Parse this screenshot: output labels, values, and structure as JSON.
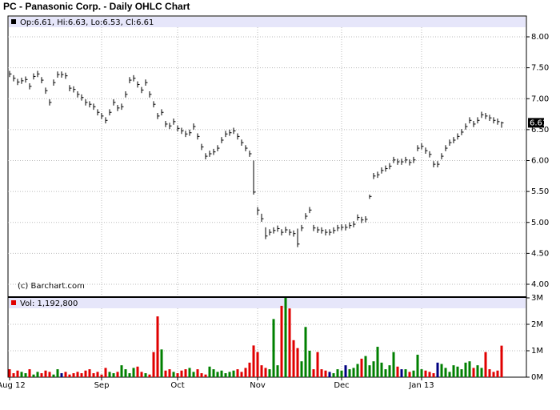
{
  "chart_data": {
    "type": "ohlc",
    "title": "PC - Panasonic Corp. - Daily OHLC Chart",
    "price_header": "Op:6.61, Hi:6.63, Lo:6.53, Cl:6.61",
    "volume_header": "Vol: 1,192,800",
    "credit": "(c) Barchart.com",
    "categories": [
      "Aug 12",
      null,
      null,
      null,
      null,
      null,
      null,
      null,
      null,
      null,
      null,
      null,
      null,
      null,
      null,
      null,
      null,
      null,
      null,
      null,
      null,
      null,
      null,
      "Sep",
      null,
      null,
      null,
      null,
      null,
      null,
      null,
      null,
      null,
      null,
      null,
      null,
      null,
      null,
      null,
      null,
      null,
      null,
      "Oct",
      null,
      null,
      null,
      null,
      null,
      null,
      null,
      null,
      null,
      null,
      null,
      null,
      null,
      null,
      null,
      null,
      null,
      null,
      null,
      "Nov",
      null,
      null,
      null,
      null,
      null,
      null,
      null,
      null,
      null,
      null,
      null,
      null,
      null,
      null,
      null,
      null,
      null,
      null,
      null,
      null,
      "Dec",
      null,
      null,
      null,
      null,
      null,
      null,
      null,
      null,
      null,
      null,
      null,
      null,
      null,
      null,
      null,
      null,
      null,
      null,
      null,
      "Jan 13",
      null,
      null,
      null,
      null,
      null,
      null,
      null,
      null,
      null,
      null,
      null,
      null,
      null,
      null,
      null,
      null,
      null,
      null,
      null,
      null
    ],
    "high": [
      7.45,
      7.38,
      7.32,
      7.34,
      7.36,
      7.25,
      7.41,
      7.45,
      7.35,
      7.18,
      6.99,
      7.31,
      7.44,
      7.44,
      7.42,
      7.22,
      7.2,
      7.12,
      7.07,
      6.99,
      6.96,
      6.92,
      6.83,
      6.77,
      6.7,
      6.83,
      6.99,
      6.9,
      6.92,
      7.12,
      7.35,
      7.38,
      7.28,
      7.19,
      7.31,
      7.12,
      6.96,
      6.77,
      6.83,
      6.64,
      6.61,
      6.68,
      6.57,
      6.53,
      6.48,
      6.5,
      6.6,
      6.44,
      6.27,
      6.12,
      6.16,
      6.19,
      6.25,
      6.38,
      6.48,
      6.5,
      6.53,
      6.44,
      6.34,
      6.25,
      6.16,
      6.0,
      5.25,
      5.14,
      4.92,
      4.89,
      4.92,
      4.95,
      4.89,
      4.93,
      4.89,
      4.87,
      4.9,
      4.96,
      5.15,
      5.25,
      4.96,
      4.93,
      4.92,
      4.89,
      4.89,
      4.92,
      4.96,
      4.97,
      4.97,
      5.0,
      5.02,
      5.13,
      5.09,
      5.1,
      5.45,
      5.8,
      5.82,
      5.89,
      5.92,
      5.96,
      6.06,
      6.03,
      6.03,
      6.06,
      6.02,
      6.06,
      6.25,
      6.28,
      6.21,
      6.15,
      5.99,
      5.99,
      6.12,
      6.25,
      6.34,
      6.38,
      6.44,
      6.51,
      6.6,
      6.7,
      6.64,
      6.7,
      6.79,
      6.77,
      6.74,
      6.7,
      6.68,
      6.63
    ],
    "low": [
      7.35,
      7.28,
      7.22,
      7.24,
      7.26,
      7.15,
      7.31,
      7.35,
      7.25,
      7.08,
      6.89,
      7.21,
      7.34,
      7.34,
      7.32,
      7.12,
      7.1,
      7.02,
      6.97,
      6.89,
      6.86,
      6.82,
      6.73,
      6.67,
      6.6,
      6.73,
      6.89,
      6.8,
      6.82,
      7.02,
      7.25,
      7.28,
      7.18,
      7.09,
      7.21,
      7.02,
      6.86,
      6.67,
      6.73,
      6.54,
      6.51,
      6.58,
      6.47,
      6.43,
      6.38,
      6.4,
      6.5,
      6.34,
      6.17,
      6.02,
      6.06,
      6.09,
      6.15,
      6.28,
      6.38,
      6.4,
      6.43,
      6.34,
      6.24,
      6.15,
      6.06,
      5.45,
      5.12,
      5.01,
      4.73,
      4.79,
      4.82,
      4.85,
      4.79,
      4.83,
      4.79,
      4.77,
      4.6,
      4.86,
      5.05,
      5.15,
      4.86,
      4.83,
      4.82,
      4.79,
      4.79,
      4.82,
      4.86,
      4.87,
      4.87,
      4.9,
      4.92,
      5.03,
      4.99,
      5.0,
      5.38,
      5.7,
      5.72,
      5.79,
      5.82,
      5.86,
      5.96,
      5.93,
      5.93,
      5.96,
      5.92,
      5.96,
      6.15,
      6.18,
      6.11,
      6.05,
      5.89,
      5.89,
      6.02,
      6.15,
      6.24,
      6.28,
      6.34,
      6.41,
      6.5,
      6.6,
      6.54,
      6.6,
      6.69,
      6.67,
      6.64,
      6.6,
      6.58,
      6.53
    ],
    "close": [
      7.4,
      7.33,
      7.27,
      7.29,
      7.31,
      7.2,
      7.36,
      7.4,
      7.3,
      7.13,
      6.94,
      7.26,
      7.39,
      7.39,
      7.37,
      7.17,
      7.15,
      7.07,
      7.02,
      6.94,
      6.91,
      6.87,
      6.78,
      6.72,
      6.65,
      6.78,
      6.94,
      6.85,
      6.87,
      7.07,
      7.3,
      7.33,
      7.23,
      7.14,
      7.26,
      7.07,
      6.91,
      6.72,
      6.78,
      6.59,
      6.56,
      6.63,
      6.52,
      6.48,
      6.43,
      6.45,
      6.55,
      6.39,
      6.22,
      6.07,
      6.11,
      6.14,
      6.2,
      6.33,
      6.43,
      6.45,
      6.48,
      6.39,
      6.29,
      6.2,
      6.11,
      5.49,
      5.2,
      5.06,
      4.78,
      4.84,
      4.87,
      4.9,
      4.84,
      4.88,
      4.84,
      4.82,
      4.65,
      4.91,
      5.1,
      5.2,
      4.91,
      4.88,
      4.87,
      4.84,
      4.84,
      4.87,
      4.91,
      4.92,
      4.92,
      4.95,
      4.97,
      5.08,
      5.04,
      5.05,
      5.42,
      5.75,
      5.77,
      5.84,
      5.87,
      5.91,
      6.01,
      5.98,
      5.98,
      6.01,
      5.97,
      6.01,
      6.2,
      6.23,
      6.16,
      6.1,
      5.94,
      5.94,
      6.07,
      6.2,
      6.29,
      6.33,
      6.39,
      6.46,
      6.55,
      6.65,
      6.59,
      6.65,
      6.74,
      6.72,
      6.69,
      6.65,
      6.63,
      6.61
    ],
    "volume": [
      0.3,
      0.15,
      0.25,
      0.2,
      0.15,
      0.3,
      0.1,
      0.2,
      0.15,
      0.25,
      0.2,
      0.1,
      0.3,
      0.15,
      0.2,
      0.1,
      0.15,
      0.2,
      0.15,
      0.25,
      0.3,
      0.15,
      0.2,
      0.1,
      0.35,
      0.2,
      0.15,
      0.2,
      0.45,
      0.3,
      0.15,
      0.35,
      0.4,
      0.2,
      0.15,
      0.1,
      0.95,
      2.3,
      1.05,
      0.25,
      0.3,
      0.2,
      0.15,
      0.25,
      0.3,
      0.35,
      0.2,
      0.3,
      0.15,
      0.1,
      0.4,
      0.3,
      0.2,
      0.25,
      0.15,
      0.2,
      0.25,
      0.3,
      0.2,
      0.35,
      0.55,
      1.2,
      0.95,
      0.45,
      0.35,
      0.3,
      2.2,
      0.45,
      2.7,
      3.0,
      2.6,
      1.4,
      1.1,
      0.6,
      1.9,
      1.0,
      0.3,
      0.95,
      0.3,
      0.25,
      0.2,
      0.15,
      0.3,
      0.25,
      0.45,
      0.3,
      0.35,
      0.5,
      0.7,
      0.8,
      0.45,
      0.6,
      1.15,
      0.55,
      0.3,
      0.45,
      0.95,
      0.4,
      0.3,
      0.3,
      0.2,
      0.25,
      0.85,
      0.3,
      0.25,
      0.2,
      0.15,
      0.55,
      0.5,
      0.35,
      0.2,
      0.45,
      0.4,
      0.3,
      0.55,
      0.6,
      0.35,
      0.45,
      0.35,
      0.95,
      0.3,
      0.2,
      0.25,
      1.1928
    ],
    "bar_color": "#000000",
    "up_color": "#008000",
    "down_color": "#e00000",
    "flat_color": "#000080",
    "ylim": [
      4,
      8.33
    ],
    "yticks": [
      {
        "value": 4,
        "label": "4.00"
      },
      {
        "value": 4.5,
        "label": "4.50"
      },
      {
        "value": 5,
        "label": "5.00"
      },
      {
        "value": 5.5,
        "label": "5.50"
      },
      {
        "value": 6,
        "label": "6.00"
      },
      {
        "value": 6.5,
        "label": "6.50"
      },
      {
        "value": 7,
        "label": "7.00"
      },
      {
        "value": 7.5,
        "label": "7.50"
      },
      {
        "value": 8,
        "label": "8.00"
      }
    ],
    "y2lim": [
      0,
      3
    ],
    "y2ticks": [
      {
        "value": 0,
        "label": "0M"
      },
      {
        "value": 1,
        "label": "1M"
      },
      {
        "value": 2,
        "label": "2M"
      },
      {
        "value": 3,
        "label": "3M"
      }
    ],
    "grid": true
  }
}
